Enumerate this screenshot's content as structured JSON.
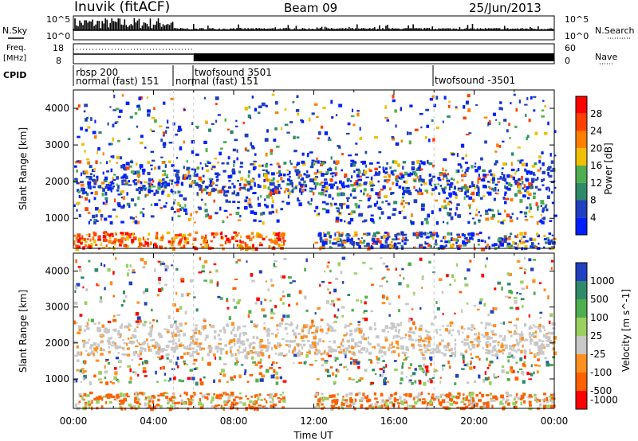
{
  "header": {
    "station": "Inuvik (fitACF)",
    "beam": "Beam 09",
    "date": "25/Jun/2013"
  },
  "summary_panels": {
    "nsky_label": "N.Sky",
    "nsearch_label": "N.Search",
    "noise_ticks_left": [
      "10^5",
      "10^0"
    ],
    "noise_ticks_right": [
      "10^5",
      "10^0"
    ],
    "freq_label_1": "Freq.",
    "freq_label_2": "[MHz]",
    "freq_ticks": [
      "18",
      "8"
    ],
    "nave_label": "Nave",
    "nave_ticks": [
      "60",
      "0"
    ],
    "cpid_label": "CPID",
    "cpid_entries": [
      {
        "line1": "rbsp 200",
        "line2": "normal (fast) 151",
        "hour": 0.0
      },
      {
        "line1": "",
        "line2": "normal (fast) 151",
        "hour": 5.0
      },
      {
        "line1": "twofsound 3501",
        "line2": "",
        "hour": 6.0
      },
      {
        "line1": "twofsound -3501",
        "line2": "",
        "hour": 18.0
      }
    ]
  },
  "chart_data": [
    {
      "type": "heatmap",
      "name": "power",
      "ylabel": "Slant Range [km]",
      "ylim": [
        180,
        4500
      ],
      "y_ticks": [
        1000,
        2000,
        3000,
        4000
      ],
      "xlim": [
        0,
        24
      ],
      "colorbar_label": "Power [dB]",
      "colorbar_ticks": [
        "4",
        "8",
        "12",
        "16",
        "20",
        "24",
        "28"
      ],
      "colors": [
        "#0020ff",
        "#2040c0",
        "#2f8a6a",
        "#4fae4f",
        "#f0c000",
        "#ff8000",
        "#ff4000",
        "#ff0000"
      ]
    },
    {
      "type": "heatmap",
      "name": "velocity",
      "ylabel": "Slant Range [km]",
      "ylim": [
        180,
        4500
      ],
      "y_ticks": [
        1000,
        2000,
        3000,
        4000
      ],
      "xlim": [
        0,
        24
      ],
      "xlabel": "Time UT",
      "x_ticks": [
        "00:00",
        "04:00",
        "08:00",
        "12:00",
        "16:00",
        "20:00",
        "00:00"
      ],
      "colorbar_label": "Velocity [m s^-1]",
      "colorbar_ticks": [
        "1000",
        "500",
        "100",
        "25",
        "-25",
        "-100",
        "-500",
        "-1000"
      ],
      "colors": [
        "#2040c0",
        "#2f8a6a",
        "#4fae4f",
        "#9ad060",
        "#c8c8c8",
        "#ff9020",
        "#ff6000",
        "#ff0000"
      ]
    }
  ]
}
